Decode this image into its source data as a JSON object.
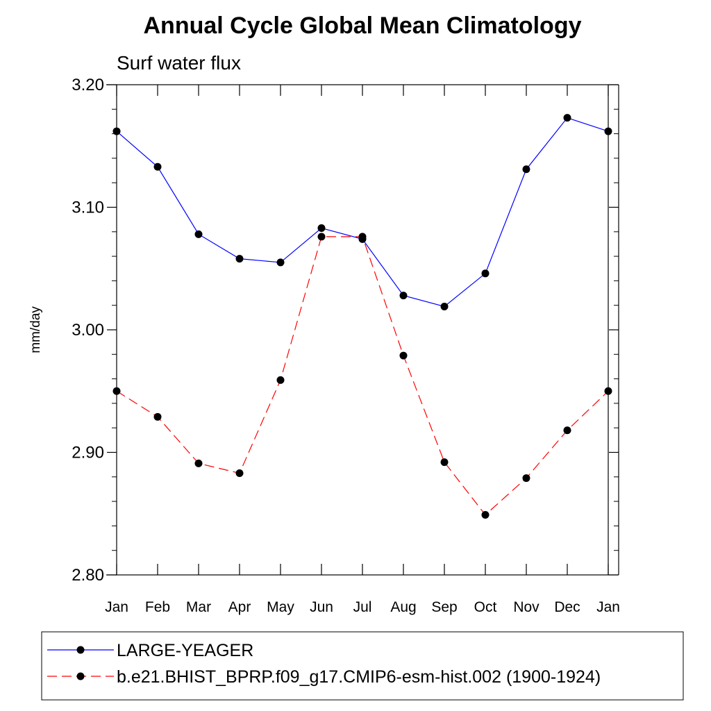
{
  "chart_data": {
    "type": "line",
    "title": "Annual Cycle Global Mean Climatology",
    "subtitle": "Surf water flux",
    "ylabel": "mm/day",
    "xlabel": "",
    "categories": [
      "Jan",
      "Feb",
      "Mar",
      "Apr",
      "May",
      "Jun",
      "Jul",
      "Aug",
      "Sep",
      "Oct",
      "Nov",
      "Dec",
      "Jan"
    ],
    "ylim": [
      2.8,
      3.2
    ],
    "yticks": [
      "2.80",
      "2.90",
      "3.00",
      "3.10",
      "3.20"
    ],
    "grid": false,
    "legend_position": "bottom",
    "series": [
      {
        "name": "LARGE-YEAGER",
        "color": "#0000ff",
        "line_style": "solid",
        "values": [
          3.162,
          3.133,
          3.078,
          3.058,
          3.055,
          3.083,
          3.074,
          3.028,
          3.019,
          3.046,
          3.131,
          3.173,
          3.162
        ]
      },
      {
        "name": "b.e21.BHIST_BPRP.f09_g17.CMIP6-esm-hist.002 (1900-1924)",
        "color": "#ff0000",
        "line_style": "dashed",
        "values": [
          2.95,
          2.929,
          2.891,
          2.883,
          2.959,
          3.076,
          3.076,
          2.979,
          2.892,
          2.849,
          2.879,
          2.918,
          2.95
        ]
      }
    ]
  }
}
